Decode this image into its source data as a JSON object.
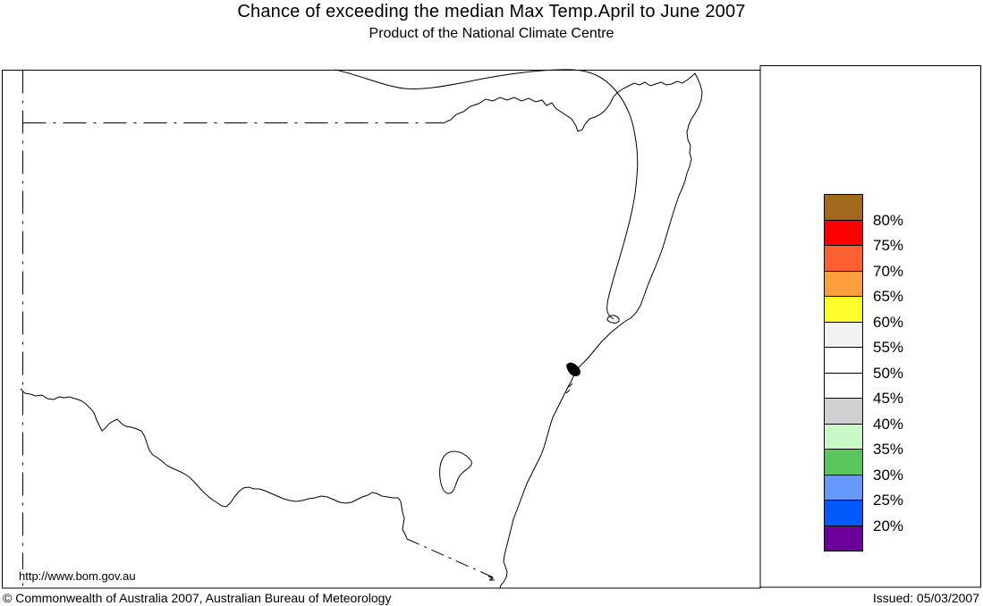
{
  "header": {
    "title": "Chance of exceeding the median Max Temp.April to June 2007",
    "subtitle": "Product of the National Climate Centre"
  },
  "map": {
    "region": "New South Wales",
    "url_label": "http://www.bom.gov.au"
  },
  "legend": {
    "labels": [
      "80%",
      "75%",
      "70%",
      "65%",
      "60%",
      "55%",
      "50%",
      "45%",
      "40%",
      "35%",
      "30%",
      "25%",
      "20%"
    ],
    "colors": [
      "#A2681C",
      "#FF0000",
      "#FC5F30",
      "#FB9E3C",
      "#FFFF2D",
      "#F2F2F2",
      "#FFFFFF",
      "#FFFFFF",
      "#D0D0D0",
      "#C8F7C8",
      "#5BC75B",
      "#6699FA",
      "#0059FA",
      "#6B009B"
    ]
  },
  "footer": {
    "copyright": "© Commonwealth of Australia 2007, Australian Bureau of Meteorology",
    "issued": "Issued: 05/03/2007"
  }
}
